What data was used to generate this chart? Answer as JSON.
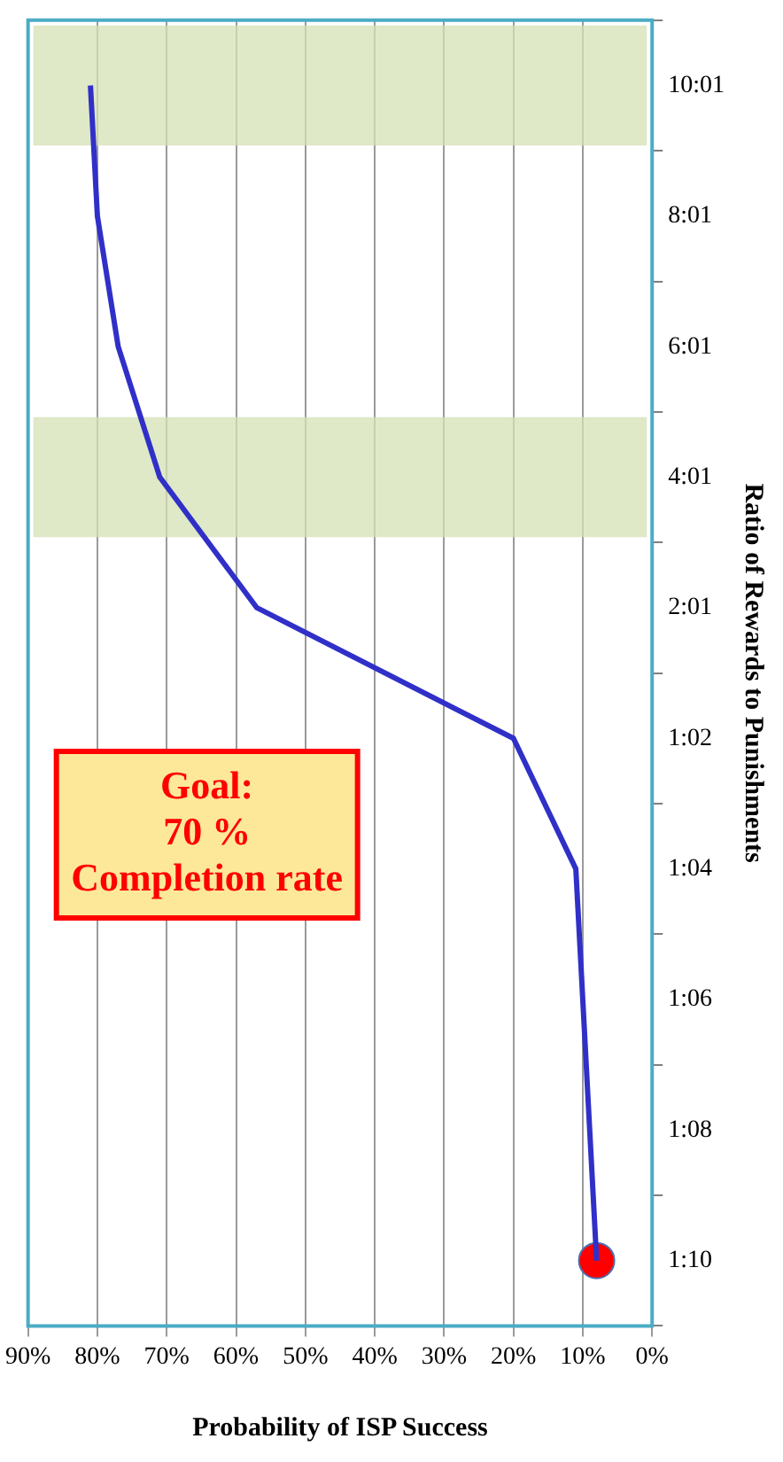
{
  "chart_data": {
    "type": "line",
    "orientation": "horizontal",
    "xlabel": "Probability of ISP Success",
    "ylabel": "Ratio of Rewards to Punishments",
    "categories": [
      "10:01",
      "8:01",
      "6:01",
      "4:01",
      "2:01",
      "1:02",
      "1:04",
      "1:06",
      "1:08",
      "1:10"
    ],
    "series": [
      {
        "color": "#3030c8",
        "values": [
          81,
          80,
          77,
          71,
          57,
          20,
          11,
          10,
          9,
          8
        ]
      },
      {
        "type": "scatter",
        "color": "#ff0000",
        "x": [
          "1:10"
        ],
        "values": [
          8
        ],
        "marker": "circle"
      }
    ],
    "xlim": [
      90,
      0
    ],
    "xticks": [
      {
        "value": 90,
        "label": "90%"
      },
      {
        "value": 80,
        "label": "80%"
      },
      {
        "value": 70,
        "label": "70%"
      },
      {
        "value": 60,
        "label": "60%"
      },
      {
        "value": 50,
        "label": "50%"
      },
      {
        "value": 40,
        "label": "40%"
      },
      {
        "value": 30,
        "label": "30%"
      },
      {
        "value": 20,
        "label": "20%"
      },
      {
        "value": 10,
        "label": "10%"
      },
      {
        "value": 0,
        "label": "0%"
      }
    ],
    "grid": "x",
    "marker": "none",
    "bands": [
      {
        "axis": "y",
        "from": "4:01",
        "to": "4:01",
        "color": "#d4e0b4"
      },
      {
        "axis": "y",
        "from": "10:01",
        "to": "10:01",
        "color": "#d4e0b4"
      }
    ],
    "annotations": [
      "Goal:\n70 %\nCompletion rate"
    ]
  }
}
